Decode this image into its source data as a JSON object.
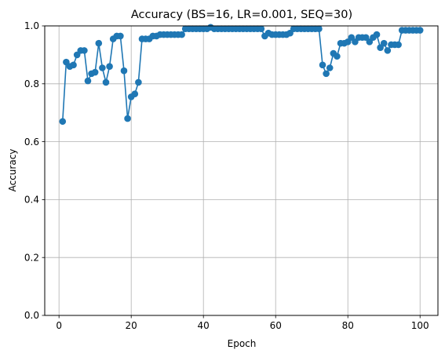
{
  "chart_data": {
    "type": "line",
    "title": "Accuracy (BS=16, LR=0.001, SEQ=30)",
    "xlabel": "Epoch",
    "ylabel": "Accuracy",
    "xlim": [
      -3.95,
      104.95
    ],
    "ylim": [
      0.0,
      1.0
    ],
    "xticks": [
      0,
      20,
      40,
      60,
      80,
      100
    ],
    "yticks": [
      0.0,
      0.2,
      0.4,
      0.6,
      0.8,
      1.0
    ],
    "xtick_labels": [
      "0",
      "20",
      "40",
      "60",
      "80",
      "100"
    ],
    "ytick_labels": [
      "0.0",
      "0.2",
      "0.4",
      "0.6",
      "0.8",
      "1.0"
    ],
    "grid": true,
    "legend": "none",
    "series_color": "#1f77b4",
    "x": [
      1,
      2,
      3,
      4,
      5,
      6,
      7,
      8,
      9,
      10,
      11,
      12,
      13,
      14,
      15,
      16,
      17,
      18,
      19,
      20,
      21,
      22,
      23,
      24,
      25,
      26,
      27,
      28,
      29,
      30,
      31,
      32,
      33,
      34,
      35,
      36,
      37,
      38,
      39,
      40,
      41,
      42,
      43,
      44,
      45,
      46,
      47,
      48,
      49,
      50,
      51,
      52,
      53,
      54,
      55,
      56,
      57,
      58,
      59,
      60,
      61,
      62,
      63,
      64,
      65,
      66,
      67,
      68,
      69,
      70,
      71,
      72,
      73,
      74,
      75,
      76,
      77,
      78,
      79,
      80,
      81,
      82,
      83,
      84,
      85,
      86,
      87,
      88,
      89,
      90,
      91,
      92,
      93,
      94,
      95,
      96,
      97,
      98,
      99,
      100
    ],
    "series": [
      {
        "values": [
          0.67,
          0.875,
          0.86,
          0.865,
          0.9,
          0.915,
          0.915,
          0.81,
          0.835,
          0.84,
          0.94,
          0.855,
          0.805,
          0.86,
          0.955,
          0.965,
          0.965,
          0.845,
          0.68,
          0.755,
          0.765,
          0.805,
          0.955,
          0.955,
          0.955,
          0.965,
          0.965,
          0.97,
          0.97,
          0.97,
          0.97,
          0.97,
          0.97,
          0.97,
          0.99,
          0.99,
          0.99,
          0.99,
          0.99,
          0.99,
          0.99,
          0.995,
          0.99,
          0.99,
          0.99,
          0.99,
          0.99,
          0.99,
          0.99,
          0.99,
          0.99,
          0.99,
          0.99,
          0.99,
          0.99,
          0.99,
          0.965,
          0.975,
          0.97,
          0.97,
          0.97,
          0.97,
          0.97,
          0.975,
          0.99,
          0.99,
          0.99,
          0.99,
          0.99,
          0.99,
          0.99,
          0.99,
          0.865,
          0.835,
          0.855,
          0.905,
          0.895,
          0.94,
          0.94,
          0.945,
          0.96,
          0.945,
          0.96,
          0.96,
          0.96,
          0.945,
          0.96,
          0.97,
          0.925,
          0.94,
          0.915,
          0.935,
          0.935,
          0.935,
          0.985,
          0.985,
          0.985,
          0.985,
          0.985,
          0.985
        ]
      }
    ]
  }
}
